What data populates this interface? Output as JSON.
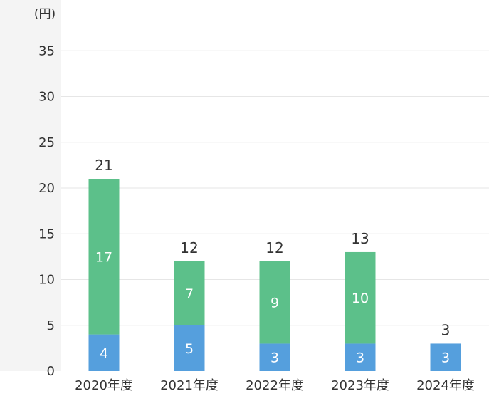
{
  "chart_data": {
    "type": "bar",
    "stacked": true,
    "unit_label": "(円)",
    "categories": [
      "2020年度",
      "2021年度",
      "2022年度",
      "2023年度",
      "2024年度"
    ],
    "series": [
      {
        "values": [
          4,
          5,
          3,
          3,
          3
        ],
        "color": "#559fdd"
      },
      {
        "values": [
          17,
          7,
          9,
          10,
          0
        ],
        "color": "#5cc08a"
      }
    ],
    "totals": [
      21,
      12,
      12,
      13,
      3
    ],
    "yticks": [
      0,
      5,
      10,
      15,
      20,
      25,
      30,
      35
    ],
    "ylim": [
      0,
      40
    ],
    "grid": true,
    "colors": {
      "gridline": "#e6e6e6",
      "axis_band": "#f4f4f4",
      "text": "#333333"
    }
  }
}
